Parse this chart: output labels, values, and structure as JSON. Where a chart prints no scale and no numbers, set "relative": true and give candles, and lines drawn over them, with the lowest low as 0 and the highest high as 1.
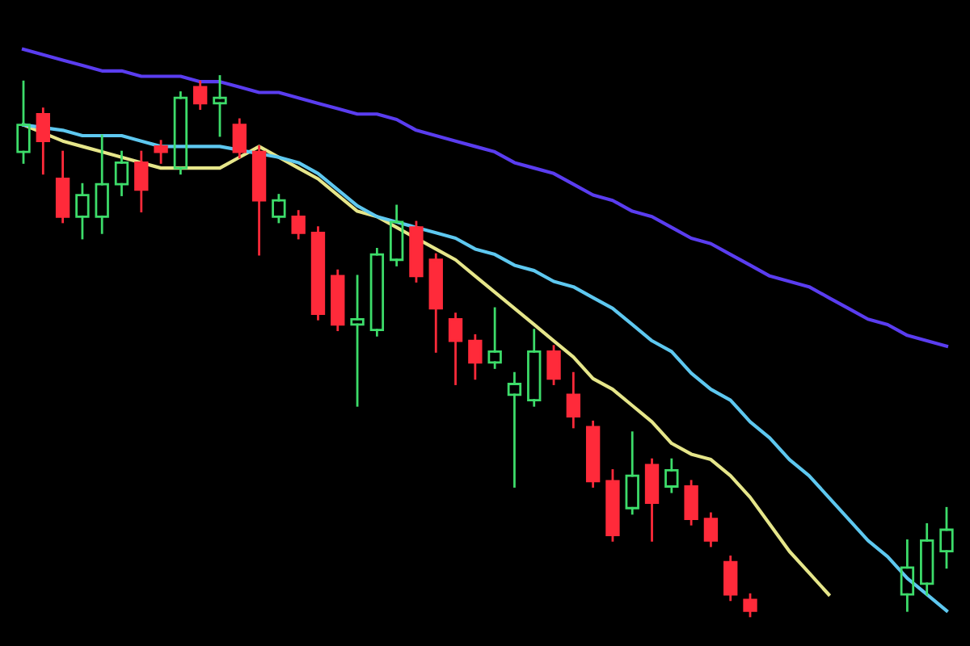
{
  "chart_data": {
    "type": "candlestick",
    "relative": true,
    "categories": [
      null,
      null,
      null,
      null,
      null,
      null,
      null,
      null,
      null,
      null,
      null,
      null,
      null,
      null,
      null,
      null,
      null,
      null,
      null,
      null,
      null,
      null,
      null,
      null,
      null,
      null,
      null,
      null,
      null,
      null,
      null,
      null,
      null,
      null,
      null,
      null,
      null,
      null,
      null,
      null,
      null,
      null,
      null,
      null,
      null,
      null,
      null,
      null
    ],
    "ohlc": [
      [
        0.86,
        0.99,
        0.84,
        0.91
      ],
      [
        0.93,
        0.94,
        0.82,
        0.88
      ],
      [
        0.81,
        0.86,
        0.73,
        0.74
      ],
      [
        0.74,
        0.8,
        0.7,
        0.78
      ],
      [
        0.74,
        0.89,
        0.71,
        0.8
      ],
      [
        0.8,
        0.86,
        0.78,
        0.84
      ],
      [
        0.84,
        0.86,
        0.75,
        0.79
      ],
      [
        0.87,
        0.88,
        0.84,
        0.86
      ],
      [
        0.83,
        0.97,
        0.82,
        0.96
      ],
      [
        0.98,
        0.99,
        0.94,
        0.95
      ],
      [
        0.95,
        1.0,
        0.89,
        0.96
      ],
      [
        0.91,
        0.92,
        0.85,
        0.86
      ],
      [
        0.86,
        0.87,
        0.67,
        0.77
      ],
      [
        0.74,
        0.78,
        0.73,
        0.77
      ],
      [
        0.74,
        0.75,
        0.7,
        0.71
      ],
      [
        0.71,
        0.72,
        0.55,
        0.56
      ],
      [
        0.63,
        0.64,
        0.53,
        0.54
      ],
      [
        0.54,
        0.63,
        0.39,
        0.55
      ],
      [
        0.53,
        0.68,
        0.52,
        0.67
      ],
      [
        0.66,
        0.76,
        0.65,
        0.73
      ],
      [
        0.72,
        0.73,
        0.62,
        0.63
      ],
      [
        0.66,
        0.67,
        0.49,
        0.57
      ],
      [
        0.55,
        0.56,
        0.43,
        0.51
      ],
      [
        0.51,
        0.52,
        0.44,
        0.47
      ],
      [
        0.47,
        0.57,
        0.46,
        0.49
      ],
      [
        0.41,
        0.45,
        0.24,
        0.43
      ],
      [
        0.4,
        0.53,
        0.39,
        0.49
      ],
      [
        0.49,
        0.5,
        0.43,
        0.44
      ],
      [
        0.41,
        0.45,
        0.35,
        0.37
      ],
      [
        0.35,
        0.36,
        0.24,
        0.25
      ],
      [
        0.25,
        0.27,
        0.14,
        0.15
      ],
      [
        0.2,
        0.34,
        0.19,
        0.26
      ],
      [
        0.28,
        0.29,
        0.14,
        0.21
      ],
      [
        0.24,
        0.29,
        0.23,
        0.27
      ],
      [
        0.24,
        0.25,
        0.17,
        0.18
      ],
      [
        0.18,
        0.19,
        0.13,
        0.14
      ],
      [
        0.1,
        0.11,
        0.03,
        0.04
      ],
      [
        0.03,
        0.04,
        0.0,
        0.01
      ],
      null,
      null,
      null,
      null,
      null,
      null,
      null,
      [
        0.04,
        0.14,
        0.01,
        0.09
      ],
      [
        0.06,
        0.17,
        0.04,
        0.14
      ],
      [
        0.12,
        0.2,
        0.09,
        0.16
      ]
    ],
    "colors": [
      "#3ddc6a",
      "#ff2a3a",
      "#ff2a3a",
      "#3ddc6a",
      "#3ddc6a",
      "#3ddc6a",
      "#ff2a3a",
      "#ff2a3a",
      "#3ddc6a",
      "#ff2a3a",
      "#3ddc6a",
      "#ff2a3a",
      "#ff2a3a",
      "#3ddc6a",
      "#ff2a3a",
      "#ff2a3a",
      "#ff2a3a",
      "#3ddc6a",
      "#3ddc6a",
      "#3ddc6a",
      "#ff2a3a",
      "#ff2a3a",
      "#ff2a3a",
      "#ff2a3a",
      "#3ddc6a",
      "#3ddc6a",
      "#3ddc6a",
      "#ff2a3a",
      "#ff2a3a",
      "#ff2a3a",
      "#ff2a3a",
      "#3ddc6a",
      "#ff2a3a",
      "#3ddc6a",
      "#ff2a3a",
      "#ff2a3a",
      "#ff2a3a",
      "#ff2a3a",
      null,
      null,
      null,
      null,
      null,
      null,
      null,
      "#3ddc6a",
      "#3ddc6a",
      "#3ddc6a"
    ],
    "series": [
      {
        "type": "line",
        "color": "#e6e68a",
        "values": [
          0.91,
          null,
          0.88,
          0.87,
          0.86,
          0.85,
          0.84,
          0.83,
          0.83,
          0.83,
          0.83,
          0.85,
          0.87,
          0.85,
          0.83,
          0.81,
          0.78,
          0.75,
          0.74,
          0.72,
          null,
          0.68,
          0.66,
          0.63,
          0.6,
          0.57,
          0.54,
          0.51,
          0.48,
          0.44,
          0.42,
          0.39,
          0.36,
          0.32,
          0.3,
          0.29,
          0.26,
          0.22,
          0.17,
          0.12,
          0.08,
          0.04,
          null,
          null,
          null,
          null,
          null,
          null
        ]
      },
      {
        "type": "line",
        "color": "#5ec8f0",
        "values": [
          0.91,
          null,
          0.9,
          0.89,
          0.89,
          0.89,
          0.88,
          0.87,
          0.87,
          0.87,
          0.87,
          null,
          null,
          0.85,
          0.84,
          0.82,
          0.79,
          0.76,
          0.74,
          0.73,
          0.72,
          0.71,
          0.7,
          0.68,
          0.67,
          0.65,
          0.64,
          0.62,
          0.61,
          0.59,
          0.57,
          0.54,
          0.51,
          0.49,
          0.45,
          0.42,
          0.4,
          0.36,
          0.33,
          0.29,
          0.26,
          0.22,
          0.18,
          0.14,
          0.11,
          0.07,
          0.04,
          0.01
        ]
      },
      {
        "type": "line",
        "color": "#5a3df0",
        "values": [
          1.05,
          1.04,
          1.03,
          1.02,
          1.01,
          1.01,
          1.0,
          1.0,
          1.0,
          0.99,
          0.99,
          0.98,
          0.97,
          0.97,
          0.96,
          0.95,
          0.94,
          0.93,
          0.93,
          0.92,
          0.9,
          0.89,
          0.88,
          0.87,
          0.86,
          0.84,
          0.83,
          0.82,
          0.8,
          0.78,
          0.77,
          0.75,
          0.74,
          0.72,
          0.7,
          0.69,
          0.67,
          0.65,
          0.63,
          0.62,
          0.61,
          0.59,
          0.57,
          0.55,
          0.54,
          0.52,
          0.51,
          0.5
        ]
      }
    ]
  }
}
